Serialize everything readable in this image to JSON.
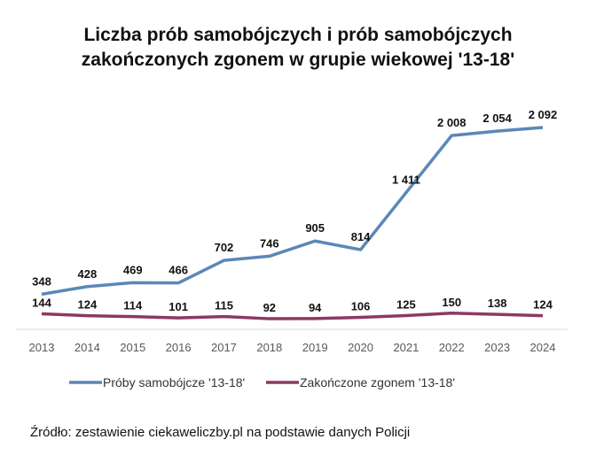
{
  "chart_data": {
    "type": "line",
    "title": [
      "Liczba prób samobójczych i prób samobójczych",
      "zakończonych zgonem w grupie wiekowej '13-18'"
    ],
    "categories": [
      "2013",
      "2014",
      "2015",
      "2016",
      "2017",
      "2018",
      "2019",
      "2020",
      "2021",
      "2022",
      "2023",
      "2024"
    ],
    "series": [
      {
        "name": "Próby samobójcze '13-18'",
        "color": "#5b87b8",
        "values": [
          348,
          428,
          469,
          466,
          702,
          746,
          905,
          814,
          1411,
          2008,
          2054,
          2092
        ],
        "labels": [
          "348",
          "428",
          "469",
          "466",
          "702",
          "746",
          "905",
          "814",
          "1 411",
          "2 008",
          "2 054",
          "2 092"
        ]
      },
      {
        "name": "Zakończone zgonem '13-18'",
        "color": "#8b3a62",
        "values": [
          144,
          124,
          114,
          101,
          115,
          92,
          94,
          106,
          125,
          150,
          138,
          124
        ],
        "labels": [
          "144",
          "124",
          "114",
          "101",
          "115",
          "92",
          "94",
          "106",
          "125",
          "150",
          "138",
          "124"
        ]
      }
    ],
    "ylim": [
      0,
      2092
    ],
    "grid": false,
    "legend": "bottom"
  },
  "source": "Źródło: zestawienie ciekaweliczby.pl na podstawie danych Policji"
}
